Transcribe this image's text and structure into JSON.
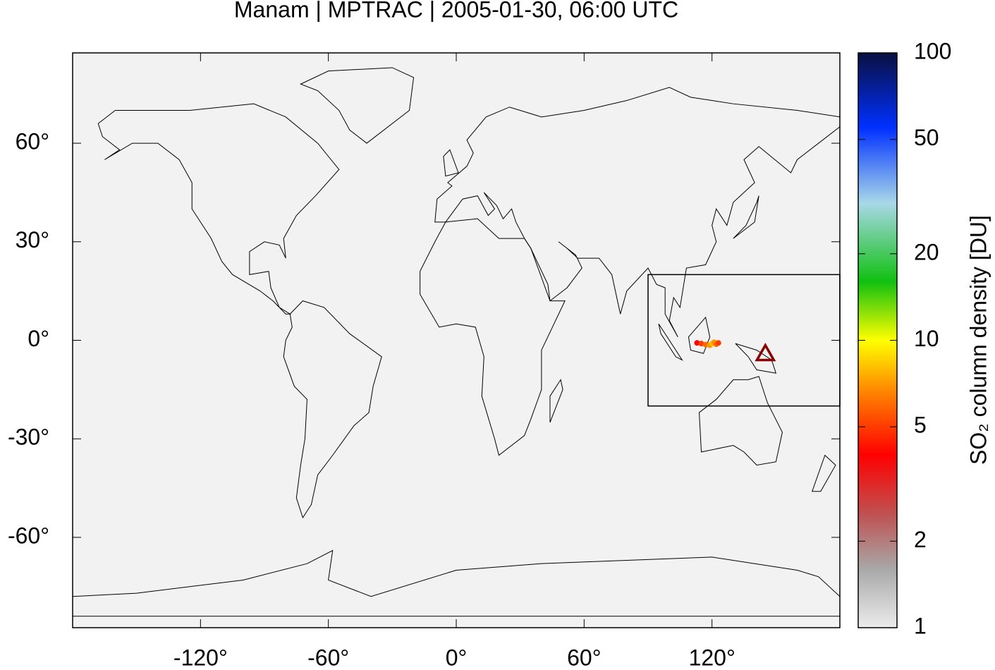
{
  "chart_data": {
    "type": "map",
    "title": "Manam | MPTRAC | 2005-01-30, 06:00 UTC",
    "xlim": [
      -180,
      180
    ],
    "ylim": [
      -87.5,
      87.5
    ],
    "xticks": [
      {
        "value": -120,
        "label": "-120°"
      },
      {
        "value": -60,
        "label": "-60°"
      },
      {
        "value": 0,
        "label": "0°"
      },
      {
        "value": 60,
        "label": "60°"
      },
      {
        "value": 120,
        "label": "120°"
      }
    ],
    "yticks": [
      {
        "value": 60,
        "label": "60°"
      },
      {
        "value": 30,
        "label": "30°"
      },
      {
        "value": 0,
        "label": "0°"
      },
      {
        "value": -30,
        "label": "-30°"
      },
      {
        "value": -60,
        "label": "-60°"
      }
    ],
    "background": "#f2f2f2",
    "region": {
      "lon": [
        90,
        180
      ],
      "lat": [
        -20,
        20
      ]
    },
    "volcano": {
      "lon": 145.04,
      "lat": -4.08,
      "color": "#8b0000"
    },
    "plume": {
      "lon": [
        113,
        115,
        117,
        119,
        120,
        121,
        122,
        123
      ],
      "lat": [
        -0.8,
        -1.0,
        -1.3,
        -1.5,
        -1.0,
        -0.6,
        -1.2,
        -0.8
      ],
      "values": [
        4,
        5,
        6,
        7,
        8,
        7,
        6,
        5
      ]
    },
    "colorbar": {
      "label": "SO₂ column density [DU]",
      "log": true,
      "lim": [
        1,
        100
      ],
      "ticks": [
        1,
        2,
        5,
        10,
        20,
        50,
        100
      ],
      "colormap": [
        {
          "value": 1,
          "color": "#ececec"
        },
        {
          "value": 1.6,
          "color": "#a8a8a8"
        },
        {
          "value": 2.5,
          "color": "#c05050"
        },
        {
          "value": 4,
          "color": "#ff0000"
        },
        {
          "value": 6.5,
          "color": "#ff8000"
        },
        {
          "value": 10,
          "color": "#ffff00"
        },
        {
          "value": 16,
          "color": "#10c010"
        },
        {
          "value": 30,
          "color": "#a8d8e8"
        },
        {
          "value": 55,
          "color": "#0030ff"
        },
        {
          "value": 100,
          "color": "#0a1040"
        }
      ]
    }
  }
}
